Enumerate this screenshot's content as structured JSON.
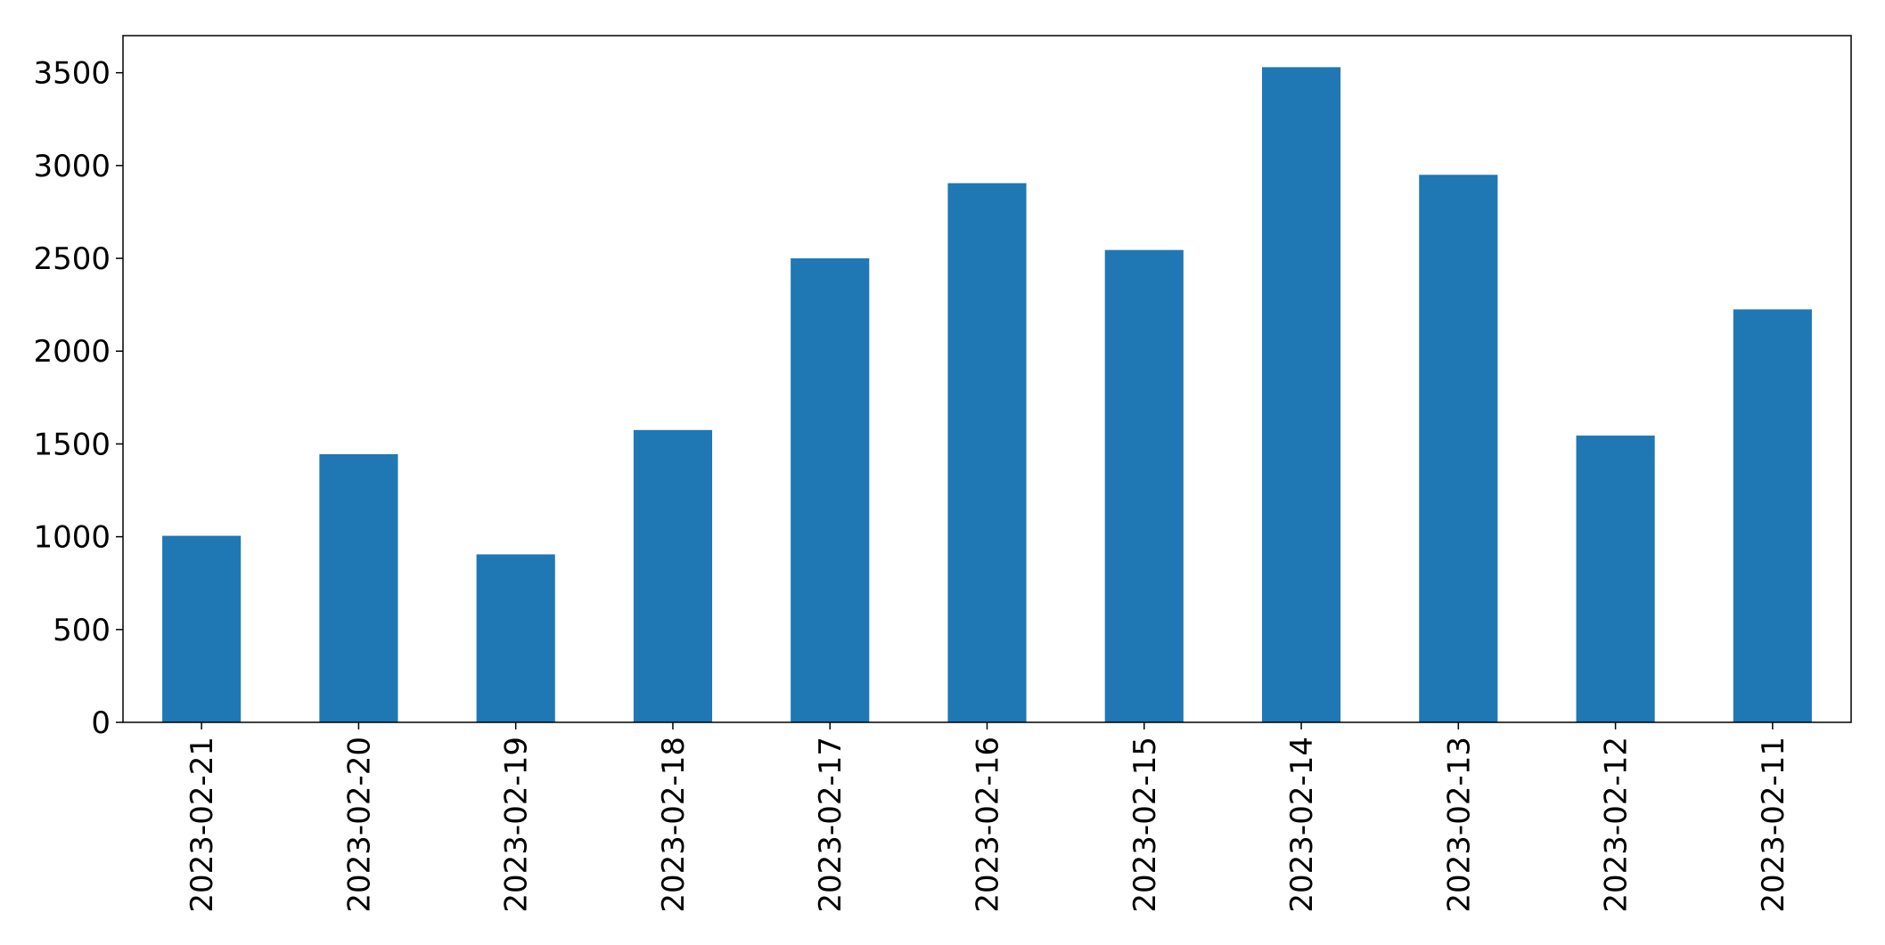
{
  "chart_data": {
    "type": "bar",
    "title": "",
    "xlabel": "",
    "ylabel": "",
    "categories": [
      "2023-02-21",
      "2023-02-20",
      "2023-02-19",
      "2023-02-18",
      "2023-02-17",
      "2023-02-16",
      "2023-02-15",
      "2023-02-14",
      "2023-02-13",
      "2023-02-12",
      "2023-02-11"
    ],
    "values": [
      1005,
      1445,
      905,
      1575,
      2500,
      2905,
      2545,
      3530,
      2950,
      1545,
      2225
    ],
    "ylim": [
      0,
      3700
    ],
    "yticks": [
      0,
      500,
      1000,
      1500,
      2000,
      2500,
      3000,
      3500
    ],
    "ytick_labels": [
      "0",
      "500",
      "1000",
      "1500",
      "2000",
      "2500",
      "3000",
      "3500"
    ],
    "bar_color": "#1f77b4",
    "grid": false,
    "legend": "none"
  }
}
